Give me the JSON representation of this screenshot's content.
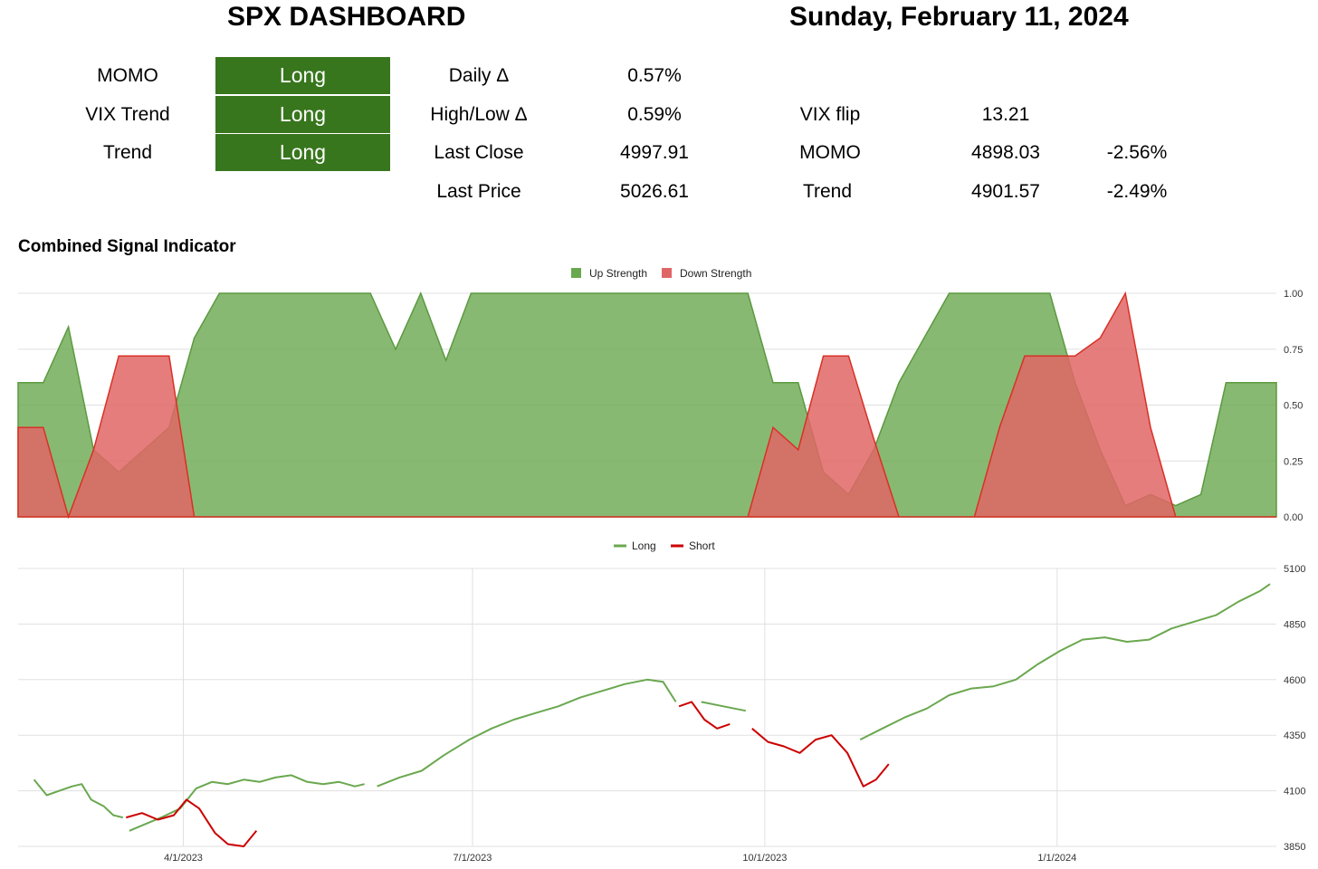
{
  "header": {
    "title": "SPX DASHBOARD",
    "date": "Sunday, February 11, 2024"
  },
  "signals": [
    {
      "label": "MOMO",
      "value": "Long"
    },
    {
      "label": "VIX Trend",
      "value": "Long"
    },
    {
      "label": "Trend",
      "value": "Long"
    }
  ],
  "stats": {
    "daily_delta_label": "Daily Δ",
    "daily_delta": "0.57%",
    "highlow_delta_label": "High/Low Δ",
    "highlow_delta": "0.59%",
    "last_close_label": "Last Close",
    "last_close": "4997.91",
    "last_price_label": "Last Price",
    "last_price": "5026.61",
    "vix_flip_label": "VIX flip",
    "vix_flip": "13.21",
    "momo_label": "MOMO",
    "momo_level": "4898.03",
    "momo_pct": "-2.56%",
    "trend_label": "Trend",
    "trend_level": "4901.57",
    "trend_pct": "-2.49%"
  },
  "colors": {
    "signal_long_bg": "#38761d",
    "up": "#6aa84f",
    "down": "#e06666",
    "long_line": "#6aa84f",
    "short_line": "#cc0000"
  },
  "chart_data": [
    {
      "type": "area",
      "title": "Combined Signal Indicator",
      "legend_position": "top-center",
      "ylim": [
        0,
        1
      ],
      "y_ticks": [
        "1.00",
        "0.75",
        "0.50",
        "0.25",
        "0.00"
      ],
      "x": [
        0,
        2,
        4,
        6,
        8,
        10,
        12,
        14,
        16,
        18,
        20,
        22,
        24,
        26,
        28,
        30,
        32,
        34,
        36,
        38,
        40,
        42,
        44,
        46,
        48,
        50,
        52,
        54,
        56,
        58,
        60,
        62,
        64,
        66,
        68,
        70,
        72,
        74,
        76,
        78,
        80,
        82,
        84,
        86,
        88,
        90,
        92,
        94,
        96,
        98,
        100
      ],
      "series": [
        {
          "name": "Up Strength",
          "values": [
            0.6,
            0.6,
            0.85,
            0.3,
            0.2,
            0.3,
            0.4,
            0.8,
            1,
            1,
            1,
            1,
            1,
            1,
            1,
            0.75,
            1,
            0.7,
            1,
            1,
            1,
            1,
            1,
            1,
            1,
            1,
            1,
            1,
            1,
            1,
            0.6,
            0.6,
            0.2,
            0.1,
            0.3,
            0.6,
            0.8,
            1,
            1,
            1,
            1,
            1,
            0.6,
            0.3,
            0.05,
            0.1,
            0.05,
            0.1,
            0.6,
            0.6,
            0.6
          ]
        },
        {
          "name": "Down Strength",
          "values": [
            0.4,
            0.4,
            0,
            0.3,
            0.72,
            0.72,
            0.72,
            0,
            0,
            0,
            0,
            0,
            0,
            0,
            0,
            0,
            0,
            0,
            0,
            0,
            0,
            0,
            0,
            0,
            0,
            0,
            0,
            0,
            0,
            0,
            0.4,
            0.3,
            0.72,
            0.72,
            0.35,
            0,
            0,
            0,
            0,
            0.4,
            0.72,
            0.72,
            0.72,
            0.8,
            1,
            0.4,
            0,
            0,
            0,
            0,
            0
          ]
        }
      ]
    },
    {
      "type": "line",
      "legend_position": "top-center",
      "ylim": [
        3850,
        5100
      ],
      "y_ticks": [
        "5100",
        "4850",
        "4600",
        "4350",
        "4100",
        "3850"
      ],
      "x_ticks": [
        "4/1/2023",
        "7/1/2023",
        "10/1/2023",
        "1/1/2024"
      ],
      "series": [
        {
          "name": "Long",
          "segments": [
            [
              [
                "2023-02-13",
                4150
              ],
              [
                "2023-02-17",
                4080
              ],
              [
                "2023-02-21",
                4100
              ],
              [
                "2023-02-25",
                4120
              ],
              [
                "2023-02-28",
                4130
              ],
              [
                "2023-03-03",
                4060
              ],
              [
                "2023-03-07",
                4030
              ],
              [
                "2023-03-10",
                3990
              ],
              [
                "2023-03-13",
                3980
              ]
            ],
            [
              [
                "2023-03-15",
                3920
              ],
              [
                "2023-03-20",
                3950
              ],
              [
                "2023-03-25",
                3980
              ],
              [
                "2023-03-31",
                4020
              ],
              [
                "2023-04-05",
                4110
              ],
              [
                "2023-04-10",
                4140
              ],
              [
                "2023-04-15",
                4130
              ],
              [
                "2023-04-20",
                4150
              ],
              [
                "2023-04-25",
                4140
              ],
              [
                "2023-04-30",
                4160
              ],
              [
                "2023-05-05",
                4170
              ],
              [
                "2023-05-10",
                4140
              ],
              [
                "2023-05-15",
                4130
              ],
              [
                "2023-05-20",
                4140
              ],
              [
                "2023-05-25",
                4120
              ],
              [
                "2023-05-28",
                4130
              ]
            ],
            [
              [
                "2023-06-01",
                4120
              ],
              [
                "2023-06-08",
                4160
              ],
              [
                "2023-06-15",
                4190
              ],
              [
                "2023-06-22",
                4260
              ],
              [
                "2023-06-30",
                4330
              ],
              [
                "2023-07-07",
                4380
              ],
              [
                "2023-07-14",
                4420
              ],
              [
                "2023-07-21",
                4450
              ],
              [
                "2023-07-28",
                4480
              ],
              [
                "2023-08-04",
                4520
              ],
              [
                "2023-08-11",
                4550
              ],
              [
                "2023-08-18",
                4580
              ],
              [
                "2023-08-25",
                4600
              ],
              [
                "2023-08-30",
                4590
              ],
              [
                "2023-09-03",
                4500
              ]
            ],
            [
              [
                "2023-09-11",
                4500
              ],
              [
                "2023-09-18",
                4480
              ],
              [
                "2023-09-25",
                4460
              ]
            ],
            [
              [
                "2023-10-31",
                4330
              ],
              [
                "2023-11-07",
                4380
              ],
              [
                "2023-11-14",
                4430
              ],
              [
                "2023-11-21",
                4470
              ],
              [
                "2023-11-28",
                4530
              ],
              [
                "2023-12-05",
                4560
              ],
              [
                "2023-12-12",
                4570
              ],
              [
                "2023-12-19",
                4600
              ],
              [
                "2023-12-26",
                4670
              ],
              [
                "2024-01-02",
                4730
              ],
              [
                "2024-01-09",
                4780
              ],
              [
                "2024-01-16",
                4790
              ],
              [
                "2024-01-23",
                4770
              ],
              [
                "2024-01-30",
                4780
              ],
              [
                "2024-02-06",
                4830
              ],
              [
                "2024-02-13",
                4860
              ],
              [
                "2024-02-20",
                4890
              ],
              [
                "2024-02-27",
                4950
              ],
              [
                "2024-03-05",
                5000
              ],
              [
                "2024-03-08",
                5030
              ]
            ]
          ]
        },
        {
          "name": "Short",
          "segments": [
            [
              [
                "2023-03-14",
                3980
              ],
              [
                "2023-03-19",
                4000
              ],
              [
                "2023-03-24",
                3970
              ],
              [
                "2023-03-29",
                3990
              ],
              [
                "2023-04-02",
                4060
              ],
              [
                "2023-04-06",
                4020
              ],
              [
                "2023-04-11",
                3910
              ],
              [
                "2023-04-15",
                3860
              ],
              [
                "2023-04-20",
                3850
              ],
              [
                "2023-04-24",
                3920
              ]
            ],
            [
              [
                "2023-09-04",
                4480
              ],
              [
                "2023-09-08",
                4500
              ],
              [
                "2023-09-12",
                4420
              ],
              [
                "2023-09-16",
                4380
              ],
              [
                "2023-09-20",
                4400
              ]
            ],
            [
              [
                "2023-09-27",
                4380
              ],
              [
                "2023-10-02",
                4320
              ],
              [
                "2023-10-07",
                4300
              ],
              [
                "2023-10-12",
                4270
              ],
              [
                "2023-10-17",
                4330
              ],
              [
                "2023-10-22",
                4350
              ],
              [
                "2023-10-27",
                4270
              ],
              [
                "2023-11-01",
                4120
              ],
              [
                "2023-11-05",
                4150
              ],
              [
                "2023-11-09",
                4220
              ]
            ]
          ]
        }
      ]
    }
  ]
}
